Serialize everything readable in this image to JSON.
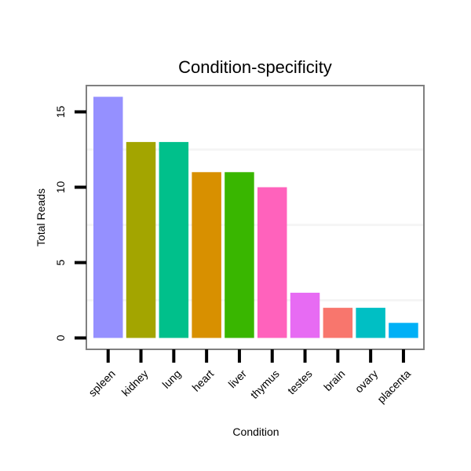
{
  "chart_data": {
    "type": "bar",
    "title": "Condition-specificity",
    "xlabel": "Condition",
    "ylabel": "Total Reads",
    "categories": [
      "spleen",
      "kidney",
      "lung",
      "heart",
      "liver",
      "thymus",
      "testes",
      "brain",
      "ovary",
      "placenta"
    ],
    "values": [
      16,
      13,
      13,
      11,
      11,
      10,
      3,
      2,
      2,
      1
    ],
    "colors": [
      "#9590FF",
      "#A3A500",
      "#00C08B",
      "#D89000",
      "#39B600",
      "#FF62BC",
      "#E76BF3",
      "#F8766D",
      "#00BFC4",
      "#00B0F6"
    ],
    "ylim": [
      0,
      16.4
    ],
    "yticks": [
      0,
      5,
      10,
      15
    ],
    "grid": true,
    "legend": "none"
  }
}
